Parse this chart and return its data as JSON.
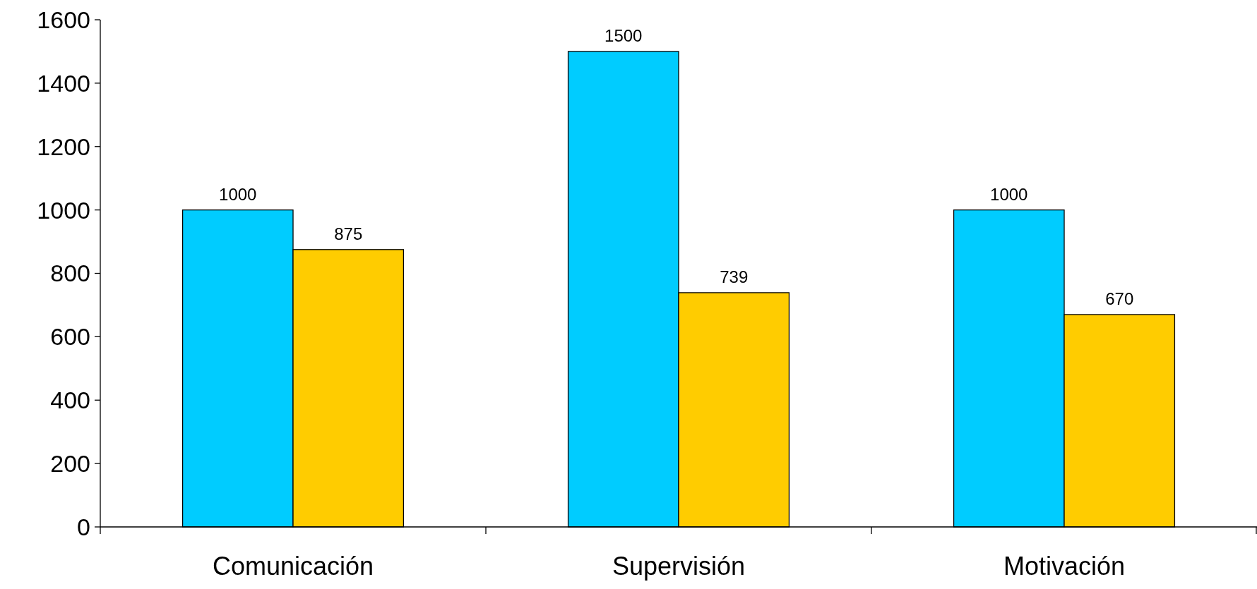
{
  "chart_data": {
    "type": "bar",
    "categories": [
      "Comunicación",
      "Supervisión",
      "Motivación"
    ],
    "series": [
      {
        "color": "#00ccff",
        "values": [
          1000,
          1500,
          1000
        ]
      },
      {
        "color": "#ffcc00",
        "values": [
          875,
          739,
          670
        ]
      }
    ],
    "ylim": [
      0,
      1600
    ],
    "yticks": [
      0,
      200,
      400,
      600,
      800,
      1000,
      1200,
      1400,
      1600
    ],
    "data_labels": true,
    "grid": false
  }
}
